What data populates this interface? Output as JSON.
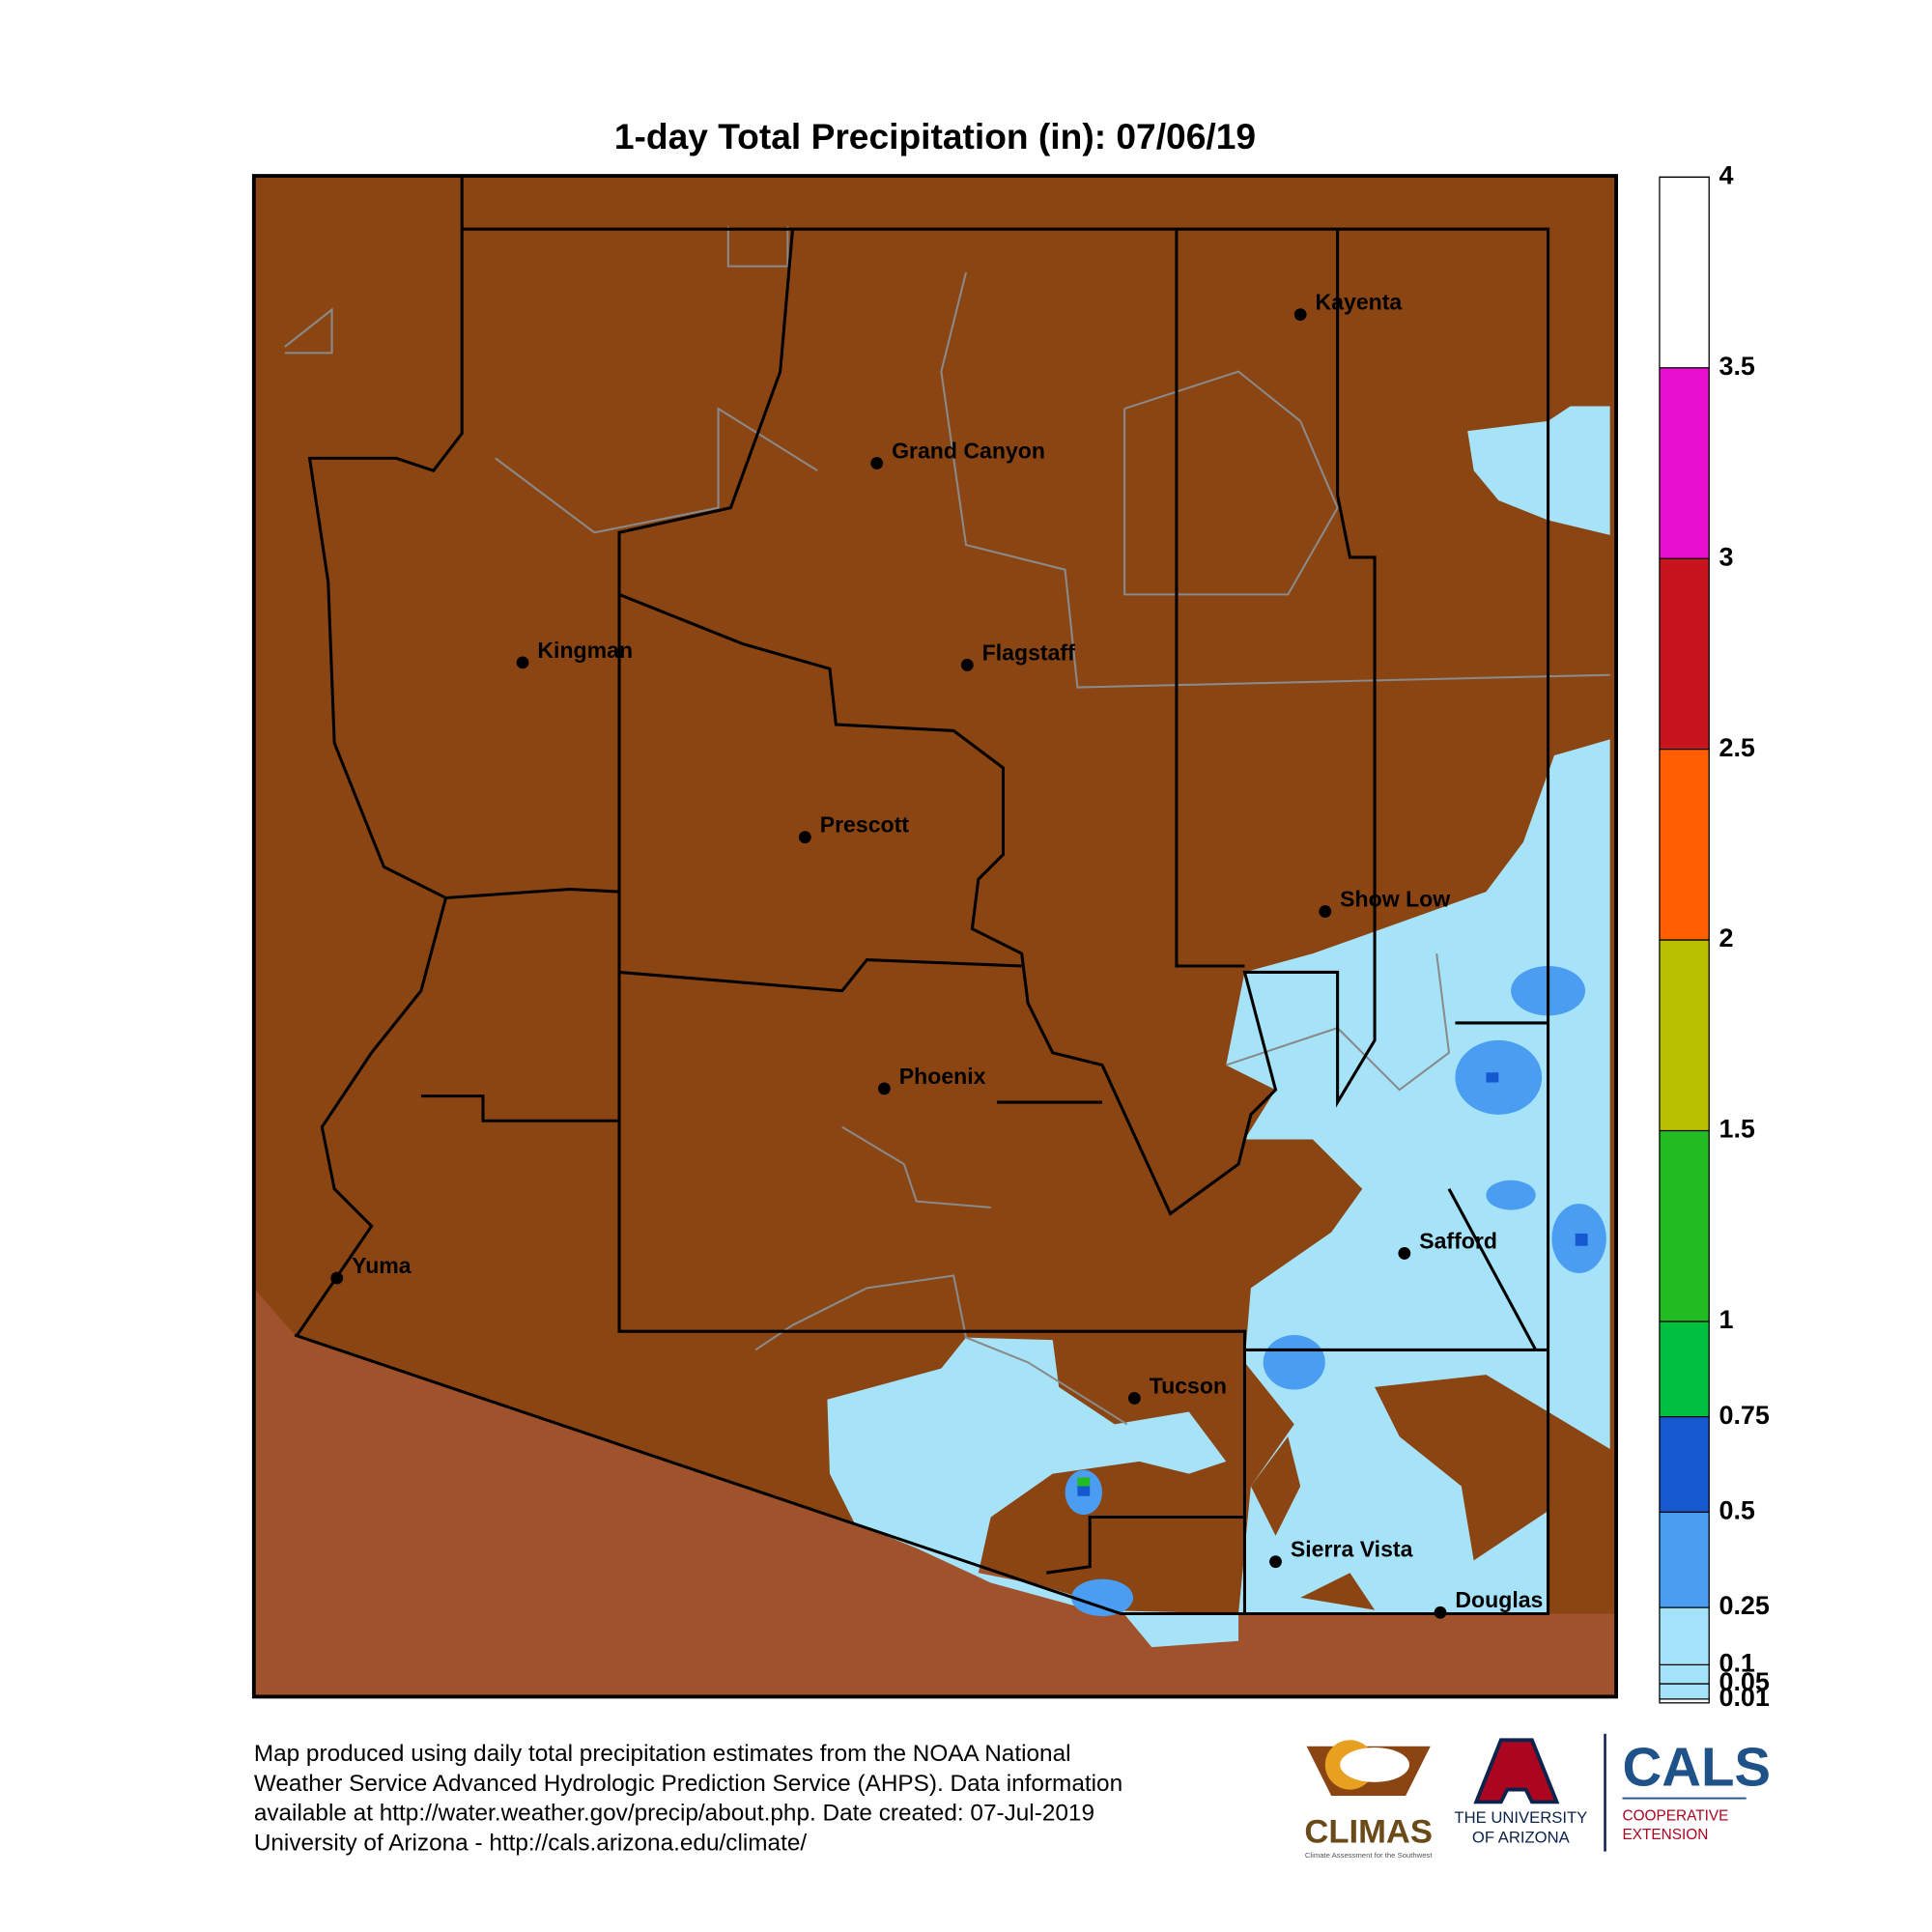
{
  "title": "1-day Total Precipitation (in): 07/06/19",
  "cities": [
    "Kayenta",
    "Grand Canyon",
    "Kingman",
    "Flagstaff",
    "Prescott",
    "Show Low",
    "Phoenix",
    "Safford",
    "Yuma",
    "Tucson",
    "Sierra Vista",
    "Douglas"
  ],
  "legend": {
    "range": [
      0,
      4
    ],
    "ticks": [
      4,
      3.5,
      3,
      2.5,
      2,
      1.5,
      1,
      0.75,
      0.5,
      0.25,
      0.1,
      0.05,
      0.01
    ],
    "colors": [
      "#ffffff",
      "#e80fd0",
      "#c8141c",
      "#ff5f00",
      "#b8c000",
      "#22bb22",
      "#00c040",
      "#1558d0",
      "#4a9df0",
      "#a4e2fa",
      "#a4e2fa",
      "#a4e2fa"
    ]
  },
  "footer": [
    "Map produced using daily total precipitation estimates from the NOAA National",
    "Weather Service Advanced Hydrologic Prediction Service (AHPS). Data information",
    "available at http://water.weather.gov/precip/about.php. Date created: 07-Jul-2019",
    "University of Arizona - http://cals.arizona.edu/climate/"
  ],
  "logos": {
    "climas": "CLIMAS",
    "climas_sub": "Climate Assessment for the Southwest",
    "ua_line1": "THE UNIVERSITY",
    "ua_line2": "OF ARIZONA",
    "cals": "CALS",
    "cals_line1": "COOPERATIVE",
    "cals_line2": "EXTENSION"
  }
}
